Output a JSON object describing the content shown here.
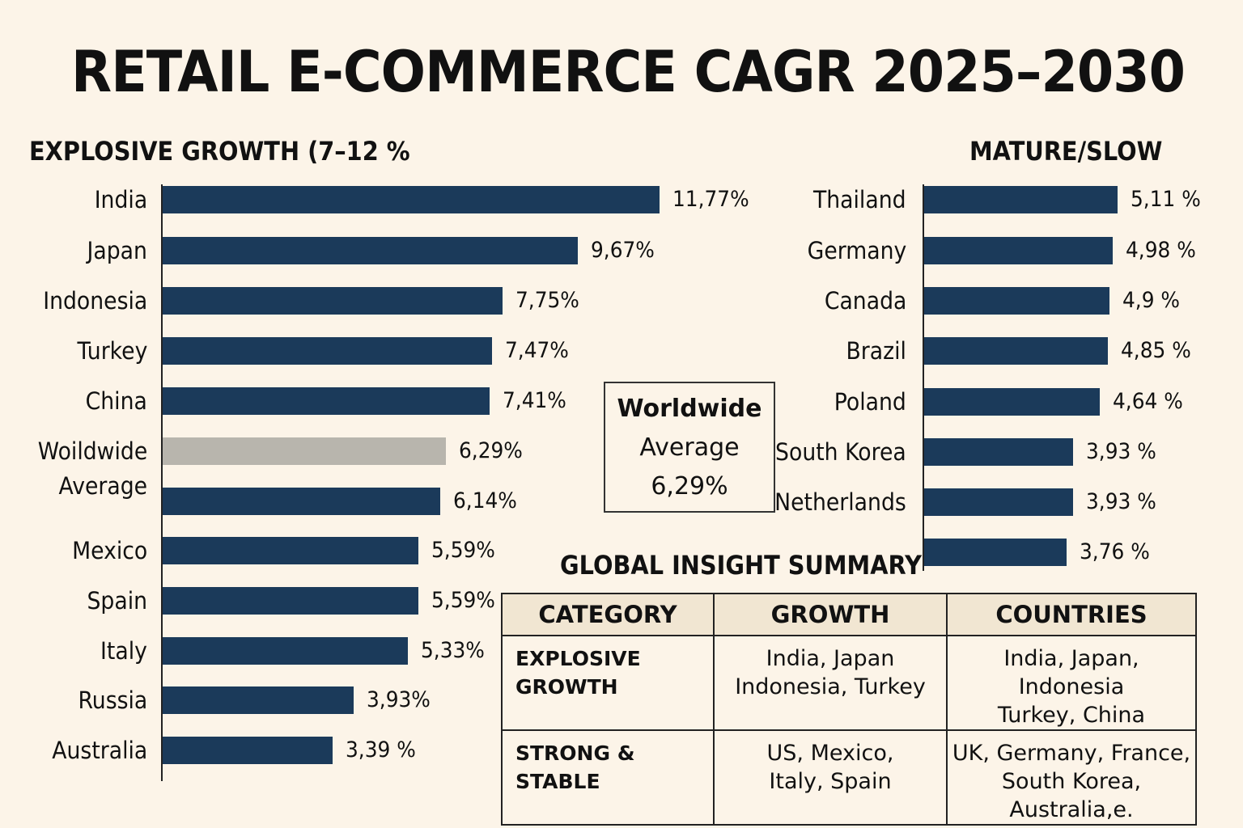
{
  "title": "RETAIL E-COMMERCE CAGR 2025–2030",
  "chart_data": [
    {
      "type": "bar",
      "orientation": "horizontal",
      "title": "EXPLOSIVE GROWTH (7–12 %",
      "categories": [
        "India",
        "Japan",
        "Indonesia",
        "Turkey",
        "China",
        "Woildwide Average",
        "",
        "Mexico",
        "Spain",
        "Italy",
        "Russia",
        "Australia"
      ],
      "category_labels": [
        "India",
        "Japan",
        "Indonesia",
        "Turkey",
        "China",
        "Woildwide",
        "Average",
        "Mexico",
        "Spain",
        "Italy",
        "Russia",
        "Australia"
      ],
      "values": [
        11.77,
        9.67,
        7.75,
        7.47,
        7.41,
        6.29,
        6.14,
        5.59,
        5.59,
        5.33,
        3.93,
        3.39
      ],
      "value_labels": [
        "11,77%",
        "9,67%",
        "7,75%",
        "7,47%",
        "7,41%",
        "6,29%",
        "6,14%",
        "5,59%",
        "5,59%",
        "5,33%",
        "3,93%",
        "3,39 %"
      ],
      "highlight_index": 5,
      "colors": {
        "bar": "#1b3a5a",
        "highlight": "#b8b5ad"
      }
    },
    {
      "type": "bar",
      "orientation": "horizontal",
      "title": "MATURE/SLOW",
      "categories": [
        "Thailand",
        "Germany",
        "Canada",
        "Brazil",
        "Poland",
        "South Korea",
        "Netherlands",
        ""
      ],
      "values": [
        5.11,
        4.98,
        4.9,
        4.85,
        4.64,
        3.93,
        3.93,
        3.76
      ],
      "value_labels": [
        "5,11 %",
        "4,98 %",
        "4,9 %",
        "4,85 %",
        "4,64 %",
        "3,93 %",
        "3,93 %",
        "3,76 %"
      ],
      "colors": {
        "bar": "#1b3a5a"
      }
    }
  ],
  "avg_box": {
    "line1": "Worldwide",
    "line2": "Average",
    "value": "6,29%"
  },
  "summary": {
    "title": "GLOBAL INSIGHT SUMMARY",
    "headers": [
      "CATEGORY",
      "GROWTH",
      "COUNTRIES"
    ],
    "rows": [
      {
        "category": "EXPLOSIVE GROWTH",
        "growth": [
          "India, Japan",
          "Indonesia, Turkey"
        ],
        "countries": [
          "India, Japan, Indonesia",
          "Turkey, China"
        ]
      },
      {
        "category": "STRONG & STABLE",
        "growth": [
          "US, Mexico,",
          "Italy, Spain"
        ],
        "countries": [
          "UK, Germany, France,",
          "South Korea, Australia,e."
        ]
      }
    ]
  }
}
